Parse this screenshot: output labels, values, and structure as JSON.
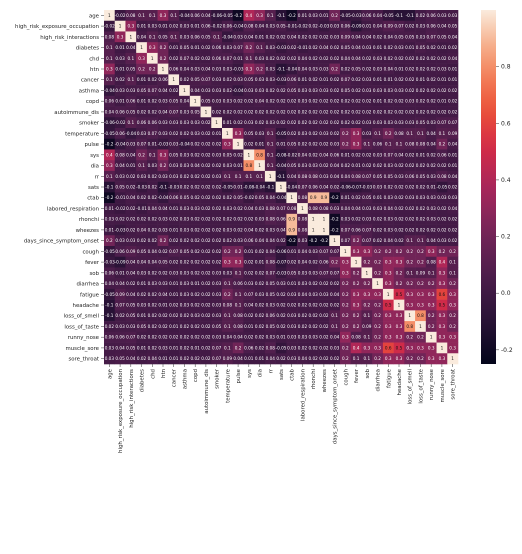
{
  "chart_data": {
    "type": "heatmap",
    "title": "",
    "xlabel": "",
    "ylabel": "",
    "variables": [
      "age",
      "high_risk_exposure_occupation",
      "high_risk_interactions",
      "diabetes",
      "chd",
      "htn",
      "cancer",
      "asthma",
      "copd",
      "autoimmune_dis",
      "smoker",
      "temperature",
      "pulse",
      "sys",
      "dia",
      "rr",
      "sats",
      "ctab",
      "labored_respiration",
      "rhonchi",
      "wheezes",
      "days_since_symptom_onset",
      "cough",
      "fever",
      "sob",
      "diarrhea",
      "fatigue",
      "headache",
      "loss_of_smell",
      "loss_of_taste",
      "runny_nose",
      "muscle_sore",
      "sore_throat"
    ],
    "matrix": [
      [
        1,
        -0.02,
        0.08,
        0.1,
        0.1,
        0.3,
        0.1,
        -0.04,
        0.06,
        0.04,
        -0.06,
        -0.05,
        -0.2,
        0.4,
        0.3,
        0.1,
        -0.1,
        -0.2,
        0.01,
        0.03,
        0.01,
        0.2,
        -0.05,
        -0.03,
        0.06,
        0.04,
        -0.05,
        -0.1,
        -0.1,
        0.02,
        0.06,
        0.03,
        0.03
      ],
      [
        -0.02,
        1,
        0.3,
        0.01,
        0.03,
        0.01,
        0.02,
        0.03,
        0.01,
        0.06,
        -0.02,
        0.06,
        -0.04,
        0.08,
        0.04,
        0.03,
        0.05,
        -0.01,
        -0.02,
        0.02,
        -0.03,
        0.03,
        0.06,
        -0.09,
        0.01,
        0.04,
        0.09,
        0.07,
        0.02,
        0.03,
        0.06,
        0.04,
        0.05
      ],
      [
        0.08,
        0.3,
        1,
        0.04,
        0.1,
        0.05,
        0.1,
        0.03,
        0.06,
        0.05,
        0.1,
        -0.04,
        0.03,
        0.04,
        0.01,
        0.02,
        0.02,
        0.04,
        0.02,
        0.02,
        0.02,
        0.03,
        0.09,
        0.04,
        0.04,
        0.02,
        0.04,
        0.05,
        0.05,
        0.03,
        0.07,
        0.05,
        0.04
      ],
      [
        0.1,
        0.01,
        0.04,
        1,
        0.3,
        0.2,
        0.01,
        0.05,
        0.01,
        0.02,
        0.06,
        0.03,
        0.07,
        0.2,
        0.1,
        0.03,
        -0.03,
        0.02,
        -0.01,
        0.02,
        0.04,
        0.02,
        0.05,
        0.04,
        0.03,
        0.01,
        0.02,
        0.03,
        0.01,
        0.05,
        0.02,
        0.01,
        0.02
      ],
      [
        0.1,
        0.03,
        0.1,
        0.3,
        1,
        0.2,
        0.02,
        0.07,
        0.02,
        0.02,
        0.06,
        0.07,
        0.01,
        0.1,
        0.03,
        0.02,
        0.02,
        0.02,
        0.04,
        0.02,
        0.02,
        0.02,
        0.04,
        0.04,
        0.02,
        0.03,
        0.02,
        0.02,
        0.02,
        0.02,
        0.02,
        0.02,
        0.04
      ],
      [
        0.3,
        0.01,
        0.05,
        0.2,
        0.2,
        1,
        0.06,
        0.04,
        0.03,
        0.04,
        0.03,
        0.03,
        -0.03,
        0.3,
        0.2,
        0.03,
        -0.1,
        -0.04,
        0.04,
        0.03,
        0.03,
        0.2,
        0.02,
        0.05,
        0.02,
        0.03,
        0.04,
        0.01,
        0.02,
        0.02,
        0.02,
        0.03,
        0.01
      ],
      [
        0.1,
        0.02,
        0.1,
        0.01,
        0.02,
        0.06,
        1,
        0.02,
        0.05,
        0.07,
        0.03,
        0.02,
        0.03,
        0.05,
        0.03,
        0.03,
        -0.03,
        0.06,
        0.01,
        0.02,
        0.01,
        0.02,
        0.07,
        0.02,
        0.03,
        0.01,
        0.01,
        0.02,
        0.02,
        0.01,
        0.02,
        0.01,
        0.01
      ],
      [
        -0.04,
        0.03,
        0.03,
        0.05,
        0.07,
        0.04,
        0.02,
        1,
        0.04,
        0.03,
        0.03,
        0.02,
        -0.04,
        0.03,
        0.03,
        0.02,
        0.02,
        0.05,
        0.03,
        0.03,
        0.03,
        0.02,
        0.05,
        0.02,
        0.03,
        0.03,
        0.03,
        0.03,
        0.02,
        0.02,
        0.02,
        0.02,
        0.02
      ],
      [
        0.06,
        0.01,
        0.06,
        0.01,
        0.02,
        0.03,
        0.05,
        0.04,
        1,
        0.05,
        0.03,
        0.03,
        0.02,
        0.02,
        0.04,
        0.02,
        0.02,
        0.02,
        0.03,
        0.02,
        0.02,
        0.02,
        0.02,
        0.02,
        0.02,
        0.01,
        0.02,
        0.02,
        0.03,
        0.02,
        0.02,
        0.01,
        0.02
      ],
      [
        0.04,
        0.06,
        0.05,
        0.02,
        0.02,
        0.04,
        0.07,
        0.03,
        0.05,
        1,
        0.02,
        0.02,
        0.02,
        0.02,
        0.02,
        0.02,
        0.02,
        0.02,
        0.02,
        0.02,
        0.02,
        0.02,
        0.02,
        0.02,
        0.02,
        0.02,
        0.02,
        0.02,
        0.02,
        0.02,
        0.02,
        0.02,
        0.02
      ],
      [
        -0.06,
        -0.02,
        0.1,
        0.06,
        0.06,
        0.03,
        0.03,
        0.03,
        0.03,
        0.02,
        1,
        0.01,
        0.02,
        0.03,
        0.02,
        0.03,
        0.02,
        0.02,
        0.02,
        0.02,
        0.02,
        0.02,
        0.02,
        0.02,
        0.03,
        0.03,
        0.03,
        0.03,
        0.03,
        0.05,
        0.03,
        0.07,
        0.07
      ],
      [
        -0.05,
        0.06,
        -0.04,
        0.03,
        0.07,
        0.03,
        0.02,
        0.02,
        0.03,
        0.02,
        0.01,
        1,
        0.3,
        0.05,
        0.03,
        0.1,
        -0.05,
        0.02,
        0.03,
        0.02,
        0.03,
        0.02,
        0.2,
        0.3,
        0.03,
        0.1,
        0.2,
        0.08,
        0.1,
        0.1,
        0.04,
        0.1,
        0.09
      ],
      [
        -0.2,
        -0.04,
        0.03,
        0.07,
        0.01,
        -0.03,
        0.03,
        -0.04,
        0.02,
        0.02,
        0.02,
        0.3,
        1,
        0.02,
        0.01,
        0.1,
        0.01,
        0.05,
        0.02,
        0.02,
        0.02,
        0.03,
        0.2,
        0.3,
        0.1,
        0.06,
        0.1,
        0.1,
        0.08,
        0.08,
        0.04,
        0.2,
        0.04
      ],
      [
        0.4,
        0.08,
        0.04,
        0.2,
        0.1,
        0.3,
        0.05,
        0.03,
        0.02,
        0.02,
        0.03,
        0.05,
        0.02,
        1,
        0.8,
        0.1,
        -0.08,
        -0.02,
        0.04,
        0.02,
        0.04,
        0.06,
        0.01,
        0.02,
        0.02,
        0.03,
        0.07,
        0.04,
        0.02,
        0.01,
        0.02,
        0.06,
        0.01
      ],
      [
        0.3,
        0.04,
        0.01,
        0.1,
        0.03,
        0.2,
        0.03,
        0.03,
        0.04,
        0.02,
        0.02,
        0.03,
        0.01,
        0.8,
        1,
        0.1,
        -0.04,
        0.05,
        0.03,
        0.03,
        0.02,
        0.04,
        0.02,
        0.01,
        0.02,
        0.02,
        0.03,
        0.02,
        0.02,
        0.02,
        0.02,
        0.02,
        0.01
      ],
      [
        0.1,
        0.03,
        0.02,
        0.03,
        0.02,
        0.03,
        0.03,
        0.02,
        0.02,
        0.02,
        0.03,
        0.1,
        0.1,
        0.1,
        0.1,
        1,
        -0.1,
        0.04,
        0.08,
        0.08,
        0.03,
        0.04,
        0.04,
        0.08,
        0.07,
        0.05,
        0.05,
        0.03,
        0.06,
        0.05,
        0.03,
        0.08,
        0.04
      ],
      [
        -0.1,
        0.05,
        0.02,
        -0.03,
        0.02,
        -0.1,
        -0.03,
        0.02,
        0.02,
        0.02,
        0.02,
        -0.05,
        0.01,
        -0.08,
        -0.04,
        -0.1,
        1,
        -0.04,
        0.07,
        0.06,
        0.04,
        0.02,
        -0.06,
        -0.07,
        -0.03,
        0.03,
        0.02,
        0.02,
        0.02,
        0.02,
        0.01,
        -0.05,
        0.02
      ],
      [
        -0.2,
        -0.01,
        0.04,
        0.02,
        0.02,
        -0.04,
        0.06,
        0.05,
        0.02,
        0.02,
        0.02,
        0.02,
        0.05,
        -0.02,
        0.05,
        0.04,
        -0.04,
        1,
        0.08,
        0.9,
        0.9,
        -0.2,
        0.01,
        0.02,
        0.05,
        0.01,
        0.03,
        0.02,
        0.03,
        0.03,
        0.03,
        0.03,
        0.03
      ],
      [
        0.01,
        -0.02,
        0.02,
        -0.01,
        0.04,
        0.04,
        0.01,
        0.03,
        0.03,
        0.02,
        0.02,
        0.03,
        0.02,
        0.04,
        0.03,
        0.08,
        0.07,
        0.08,
        1,
        0.08,
        0.08,
        0.03,
        0.04,
        0.04,
        0.03,
        0.03,
        0.04,
        0.02,
        0.02,
        0.02,
        0.03,
        0.02,
        0.04
      ],
      [
        0.03,
        0.02,
        0.02,
        0.02,
        0.02,
        0.03,
        0.02,
        0.03,
        0.02,
        0.02,
        0.02,
        0.02,
        0.02,
        0.02,
        0.03,
        0.08,
        0.06,
        0.9,
        0.08,
        1,
        1,
        -0.2,
        0.03,
        0.02,
        0.03,
        0.02,
        0.03,
        0.02,
        0.02,
        0.02,
        0.03,
        0.02,
        0.02
      ],
      [
        0.01,
        -0.03,
        0.02,
        0.04,
        0.02,
        0.03,
        0.01,
        0.03,
        0.02,
        0.02,
        0.02,
        0.03,
        0.02,
        0.04,
        0.02,
        0.03,
        0.04,
        0.9,
        0.08,
        1,
        1,
        -0.2,
        0.07,
        0.06,
        0.07,
        0.02,
        0.03,
        0.02,
        0.02,
        0.02,
        0.02,
        0.02,
        0.02
      ],
      [
        0.2,
        0.03,
        0.03,
        0.02,
        0.02,
        0.2,
        0.02,
        0.02,
        0.02,
        0.02,
        0.02,
        0.02,
        0.03,
        0.06,
        0.04,
        0.04,
        0.02,
        -0.2,
        0.03,
        -0.2,
        -0.2,
        1,
        0.07,
        0.2,
        0.07,
        0.02,
        0.04,
        0.02,
        0.1,
        0.1,
        0.04,
        0.03,
        0.02
      ],
      [
        -0.05,
        0.06,
        0.09,
        0.05,
        0.04,
        0.02,
        0.07,
        0.05,
        0.02,
        0.02,
        0.02,
        0.2,
        0.2,
        0.01,
        0.02,
        0.04,
        -0.06,
        0.01,
        0.04,
        0.03,
        0.07,
        0.07,
        1,
        0.3,
        0.3,
        0.2,
        0.2,
        0.2,
        0.2,
        0.2,
        0.3,
        0.2,
        0.2
      ],
      [
        -0.03,
        -0.09,
        0.04,
        0.04,
        0.04,
        0.05,
        0.02,
        0.02,
        0.02,
        0.02,
        0.02,
        0.3,
        0.3,
        0.02,
        0.01,
        0.08,
        -0.07,
        0.02,
        0.04,
        0.02,
        0.06,
        0.2,
        0.3,
        1,
        0.2,
        0.2,
        0.3,
        0.3,
        0.2,
        0.2,
        0.08,
        0.4,
        0.1
      ],
      [
        0.06,
        0.01,
        0.04,
        0.03,
        0.02,
        0.02,
        0.03,
        0.03,
        0.02,
        0.02,
        0.03,
        0.03,
        0.1,
        0.02,
        0.02,
        0.07,
        -0.03,
        0.05,
        0.03,
        0.03,
        0.07,
        0.07,
        0.3,
        0.2,
        1,
        0.2,
        0.3,
        0.2,
        0.1,
        0.09,
        0.1,
        0.3,
        0.1
      ],
      [
        0.04,
        0.04,
        0.02,
        0.01,
        0.03,
        0.03,
        0.01,
        0.03,
        0.01,
        0.02,
        0.03,
        0.1,
        0.06,
        0.03,
        0.02,
        0.05,
        0.03,
        0.01,
        0.03,
        0.02,
        0.02,
        0.02,
        0.2,
        0.2,
        0.2,
        1,
        0.3,
        0.2,
        0.2,
        0.2,
        0.2,
        0.3,
        0.2
      ],
      [
        -0.05,
        0.09,
        0.04,
        0.02,
        0.02,
        0.04,
        0.01,
        0.03,
        0.02,
        0.02,
        0.03,
        0.2,
        0.1,
        0.07,
        0.03,
        0.05,
        0.02,
        0.03,
        0.04,
        0.03,
        0.03,
        0.04,
        0.2,
        0.3,
        0.3,
        0.3,
        1,
        0.5,
        0.3,
        0.3,
        0.3,
        0.6,
        0.3
      ],
      [
        -0.1,
        0.07,
        0.05,
        0.03,
        0.02,
        0.01,
        0.02,
        0.03,
        0.02,
        0.02,
        0.03,
        0.08,
        0.1,
        0.04,
        0.02,
        0.03,
        0.02,
        0.02,
        0.02,
        0.02,
        0.02,
        0.02,
        0.2,
        0.3,
        0.2,
        0.2,
        0.5,
        1,
        0.3,
        0.3,
        0.3,
        0.5,
        0.3
      ],
      [
        -0.1,
        0.02,
        0.05,
        0.01,
        0.02,
        0.02,
        0.02,
        0.02,
        0.03,
        0.02,
        0.03,
        0.1,
        0.08,
        0.02,
        0.02,
        0.06,
        0.02,
        0.03,
        0.02,
        0.02,
        0.02,
        0.1,
        0.2,
        0.2,
        0.1,
        0.2,
        0.3,
        0.3,
        1,
        0.8,
        0.2,
        0.3,
        0.2
      ],
      [
        0.02,
        0.03,
        0.03,
        0.05,
        0.02,
        0.02,
        0.01,
        0.02,
        0.02,
        0.02,
        0.05,
        0.1,
        0.08,
        0.01,
        0.02,
        0.05,
        0.02,
        0.03,
        0.02,
        0.02,
        0.02,
        0.1,
        0.2,
        0.2,
        0.09,
        0.2,
        0.3,
        0.3,
        0.8,
        1,
        0.2,
        0.3,
        0.2
      ],
      [
        0.06,
        0.06,
        0.07,
        0.02,
        0.02,
        0.02,
        0.02,
        0.02,
        0.02,
        0.02,
        0.03,
        0.04,
        0.04,
        0.02,
        0.02,
        0.03,
        0.01,
        0.03,
        0.03,
        0.03,
        0.02,
        0.04,
        0.3,
        0.08,
        0.1,
        0.2,
        0.3,
        0.3,
        0.2,
        0.2,
        1,
        0.3,
        0.3
      ],
      [
        0.03,
        0.04,
        0.05,
        0.01,
        0.02,
        0.03,
        0.01,
        0.02,
        0.01,
        0.02,
        0.07,
        0.1,
        0.2,
        0.06,
        0.02,
        0.08,
        -0.05,
        0.03,
        0.02,
        0.02,
        0.02,
        0.03,
        0.2,
        0.4,
        0.3,
        0.3,
        0.6,
        0.5,
        0.3,
        0.3,
        0.3,
        1,
        0.3
      ],
      [
        0.03,
        0.05,
        0.04,
        0.02,
        0.04,
        0.01,
        0.01,
        0.02,
        0.02,
        0.02,
        0.07,
        0.09,
        0.04,
        0.01,
        0.01,
        0.04,
        0.02,
        0.03,
        0.04,
        0.02,
        0.02,
        0.02,
        0.2,
        0.1,
        0.1,
        0.2,
        0.3,
        0.3,
        0.2,
        0.2,
        0.3,
        0.3,
        1
      ]
    ],
    "vmin": -0.25,
    "vmax": 1.0,
    "colorbar_ticks": [
      "1.0",
      "0.8",
      "0.6",
      "0.4",
      "0.2",
      "0.0",
      "-0.2"
    ],
    "colorbar_values": [
      1.0,
      0.8,
      0.6,
      0.4,
      0.2,
      0.0,
      -0.2
    ],
    "colormap": "rocket"
  }
}
